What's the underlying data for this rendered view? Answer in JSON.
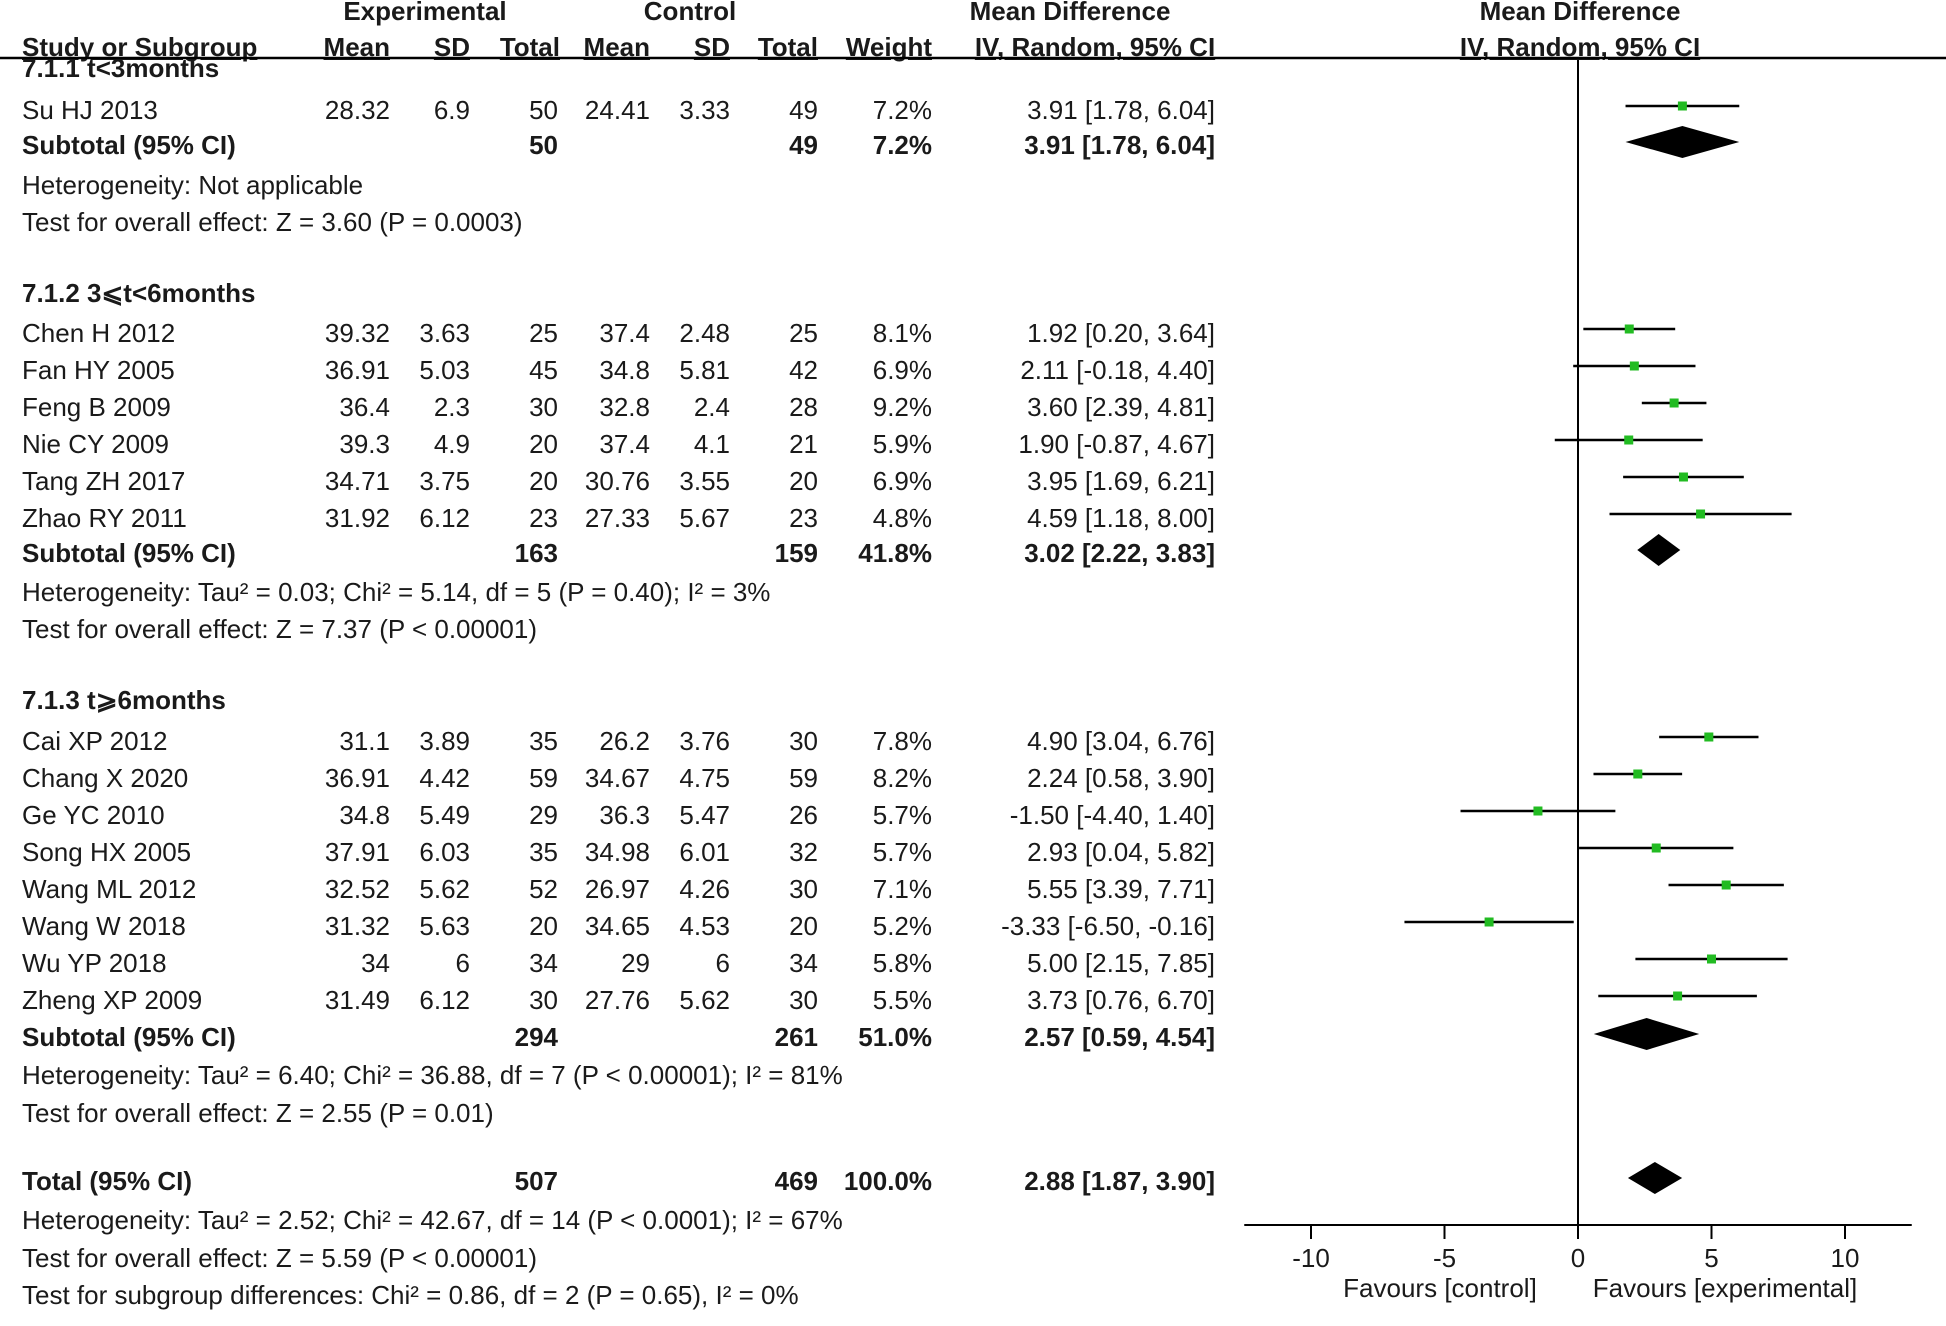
{
  "header": {
    "group_experimental": "Experimental",
    "group_control": "Control",
    "md_title": "Mean Difference",
    "plot_title": "Mean Difference",
    "col_study": "Study or Subgroup",
    "col_mean_e": "Mean",
    "col_sd_e": "SD",
    "col_total_e": "Total",
    "col_mean_c": "Mean",
    "col_sd_c": "SD",
    "col_total_c": "Total",
    "col_weight": "Weight",
    "col_method": "IV, Random, 95% CI",
    "plot_method": "IV, Random, 95% CI"
  },
  "rows": [
    {
      "kind": "sub",
      "label": "7.1.1 t<3months"
    },
    {
      "kind": "study",
      "study": "Su HJ 2013",
      "mean_e": "28.32",
      "sd_e": "6.9",
      "total_e": "50",
      "mean_c": "24.41",
      "sd_c": "3.33",
      "total_c": "49",
      "weight": "7.2%",
      "ci": "3.91 [1.78, 6.04]"
    },
    {
      "kind": "subtotal",
      "label": "Subtotal (95% CI)",
      "total_e": "50",
      "total_c": "49",
      "weight": "7.2%",
      "ci": "3.91 [1.78, 6.04]"
    },
    {
      "kind": "text",
      "text": "Heterogeneity: Not applicable"
    },
    {
      "kind": "text",
      "text": "Test for overall effect: Z = 3.60 (P = 0.0003)"
    },
    {
      "kind": "blank"
    },
    {
      "kind": "sub",
      "label": "7.1.2 3⩽t<6months"
    },
    {
      "kind": "study",
      "study": "Chen H 2012",
      "mean_e": "39.32",
      "sd_e": "3.63",
      "total_e": "25",
      "mean_c": "37.4",
      "sd_c": "2.48",
      "total_c": "25",
      "weight": "8.1%",
      "ci": "1.92 [0.20, 3.64]"
    },
    {
      "kind": "study",
      "study": "Fan HY 2005",
      "mean_e": "36.91",
      "sd_e": "5.03",
      "total_e": "45",
      "mean_c": "34.8",
      "sd_c": "5.81",
      "total_c": "42",
      "weight": "6.9%",
      "ci": "2.11 [-0.18, 4.40]"
    },
    {
      "kind": "study",
      "study": "Feng B 2009",
      "mean_e": "36.4",
      "sd_e": "2.3",
      "total_e": "30",
      "mean_c": "32.8",
      "sd_c": "2.4",
      "total_c": "28",
      "weight": "9.2%",
      "ci": "3.60 [2.39, 4.81]"
    },
    {
      "kind": "study",
      "study": "Nie CY 2009",
      "mean_e": "39.3",
      "sd_e": "4.9",
      "total_e": "20",
      "mean_c": "37.4",
      "sd_c": "4.1",
      "total_c": "21",
      "weight": "5.9%",
      "ci": "1.90 [-0.87, 4.67]"
    },
    {
      "kind": "study",
      "study": "Tang ZH 2017",
      "mean_e": "34.71",
      "sd_e": "3.75",
      "total_e": "20",
      "mean_c": "30.76",
      "sd_c": "3.55",
      "total_c": "20",
      "weight": "6.9%",
      "ci": "3.95 [1.69, 6.21]"
    },
    {
      "kind": "study",
      "study": "Zhao RY 2011",
      "mean_e": "31.92",
      "sd_e": "6.12",
      "total_e": "23",
      "mean_c": "27.33",
      "sd_c": "5.67",
      "total_c": "23",
      "weight": "4.8%",
      "ci": "4.59 [1.18, 8.00]"
    },
    {
      "kind": "subtotal",
      "label": "Subtotal (95% CI)",
      "total_e": "163",
      "total_c": "159",
      "weight": "41.8%",
      "ci": "3.02 [2.22, 3.83]"
    },
    {
      "kind": "text",
      "text": "Heterogeneity: Tau² = 0.03; Chi² = 5.14, df = 5 (P = 0.40); I² = 3%"
    },
    {
      "kind": "text",
      "text": "Test for overall effect: Z = 7.37 (P < 0.00001)"
    },
    {
      "kind": "blank"
    },
    {
      "kind": "sub",
      "label": "7.1.3 t⩾6months"
    },
    {
      "kind": "study",
      "study": "Cai XP 2012",
      "mean_e": "31.1",
      "sd_e": "3.89",
      "total_e": "35",
      "mean_c": "26.2",
      "sd_c": "3.76",
      "total_c": "30",
      "weight": "7.8%",
      "ci": "4.90 [3.04, 6.76]"
    },
    {
      "kind": "study",
      "study": "Chang X 2020",
      "mean_e": "36.91",
      "sd_e": "4.42",
      "total_e": "59",
      "mean_c": "34.67",
      "sd_c": "4.75",
      "total_c": "59",
      "weight": "8.2%",
      "ci": "2.24 [0.58, 3.90]"
    },
    {
      "kind": "study",
      "study": "Ge YC 2010",
      "mean_e": "34.8",
      "sd_e": "5.49",
      "total_e": "29",
      "mean_c": "36.3",
      "sd_c": "5.47",
      "total_c": "26",
      "weight": "5.7%",
      "ci": "-1.50 [-4.40, 1.40]"
    },
    {
      "kind": "study",
      "study": "Song HX 2005",
      "mean_e": "37.91",
      "sd_e": "6.03",
      "total_e": "35",
      "mean_c": "34.98",
      "sd_c": "6.01",
      "total_c": "32",
      "weight": "5.7%",
      "ci": "2.93 [0.04, 5.82]"
    },
    {
      "kind": "study",
      "study": "Wang ML 2012",
      "mean_e": "32.52",
      "sd_e": "5.62",
      "total_e": "52",
      "mean_c": "26.97",
      "sd_c": "4.26",
      "total_c": "30",
      "weight": "7.1%",
      "ci": "5.55 [3.39, 7.71]"
    },
    {
      "kind": "study",
      "study": "Wang W 2018",
      "mean_e": "31.32",
      "sd_e": "5.63",
      "total_e": "20",
      "mean_c": "34.65",
      "sd_c": "4.53",
      "total_c": "20",
      "weight": "5.2%",
      "ci": "-3.33 [-6.50, -0.16]"
    },
    {
      "kind": "study",
      "study": "Wu YP 2018",
      "mean_e": "34",
      "sd_e": "6",
      "total_e": "34",
      "mean_c": "29",
      "sd_c": "6",
      "total_c": "34",
      "weight": "5.8%",
      "ci": "5.00 [2.15, 7.85]"
    },
    {
      "kind": "study",
      "study": "Zheng XP  2009",
      "mean_e": "31.49",
      "sd_e": "6.12",
      "total_e": "30",
      "mean_c": "27.76",
      "sd_c": "5.62",
      "total_c": "30",
      "weight": "5.5%",
      "ci": "3.73 [0.76, 6.70]"
    },
    {
      "kind": "subtotal",
      "label": "Subtotal (95% CI)",
      "total_e": "294",
      "total_c": "261",
      "weight": "51.0%",
      "ci": "2.57 [0.59, 4.54]"
    },
    {
      "kind": "text",
      "text": "Heterogeneity: Tau² = 6.40; Chi² = 36.88, df = 7 (P < 0.00001); I² = 81%"
    },
    {
      "kind": "text",
      "text": "Test for overall effect: Z = 2.55 (P = 0.01)"
    },
    {
      "kind": "blank"
    },
    {
      "kind": "total",
      "label": "Total (95% CI)",
      "total_e": "507",
      "total_c": "469",
      "weight": "100.0%",
      "ci": "2.88 [1.87, 3.90]"
    },
    {
      "kind": "text",
      "text": "Heterogeneity: Tau² = 2.52; Chi² = 42.67, df = 14 (P < 0.0001); I² = 67%"
    },
    {
      "kind": "text",
      "text": "Test for overall effect: Z = 5.59 (P < 0.00001)"
    },
    {
      "kind": "text",
      "text": "Test for subgroup differences: Chi² = 0.86, df = 2 (P = 0.65), I² = 0%"
    }
  ],
  "chart_data": {
    "type": "forest",
    "title": "Mean Difference",
    "method": "IV, Random, 95% CI",
    "xlim": [
      -12.5,
      12.5
    ],
    "ticks": [
      -10,
      -5,
      0,
      5,
      10
    ],
    "tick_labels": [
      "-10",
      "-5",
      "0",
      "5",
      "10"
    ],
    "favours_left": "Favours [control]",
    "favours_right": "Favours [experimental]",
    "marker_color": "#22bb22",
    "line_color": "#000000",
    "studies": [
      {
        "study": "Su HJ 2013",
        "md": 3.91,
        "lo": 1.78,
        "hi": 6.04
      },
      {
        "study": "Chen H 2012",
        "md": 1.92,
        "lo": 0.2,
        "hi": 3.64
      },
      {
        "study": "Fan HY 2005",
        "md": 2.11,
        "lo": -0.18,
        "hi": 4.4
      },
      {
        "study": "Feng B 2009",
        "md": 3.6,
        "lo": 2.39,
        "hi": 4.81
      },
      {
        "study": "Nie CY 2009",
        "md": 1.9,
        "lo": -0.87,
        "hi": 4.67
      },
      {
        "study": "Tang ZH 2017",
        "md": 3.95,
        "lo": 1.69,
        "hi": 6.21
      },
      {
        "study": "Zhao RY 2011",
        "md": 4.59,
        "lo": 1.18,
        "hi": 8.0
      },
      {
        "study": "Cai XP 2012",
        "md": 4.9,
        "lo": 3.04,
        "hi": 6.76
      },
      {
        "study": "Chang X 2020",
        "md": 2.24,
        "lo": 0.58,
        "hi": 3.9
      },
      {
        "study": "Ge YC 2010",
        "md": -1.5,
        "lo": -4.4,
        "hi": 1.4
      },
      {
        "study": "Song HX 2005",
        "md": 2.93,
        "lo": 0.04,
        "hi": 5.82
      },
      {
        "study": "Wang ML 2012",
        "md": 5.55,
        "lo": 3.39,
        "hi": 7.71
      },
      {
        "study": "Wang W 2018",
        "md": -3.33,
        "lo": -6.5,
        "hi": -0.16
      },
      {
        "study": "Wu YP 2018",
        "md": 5.0,
        "lo": 2.15,
        "hi": 7.85
      },
      {
        "study": "Zheng XP  2009",
        "md": 3.73,
        "lo": 0.76,
        "hi": 6.7
      }
    ],
    "subtotals": [
      {
        "label": "7.1.1 Subtotal",
        "md": 3.91,
        "lo": 1.78,
        "hi": 6.04
      },
      {
        "label": "7.1.2 Subtotal",
        "md": 3.02,
        "lo": 2.22,
        "hi": 3.83
      },
      {
        "label": "7.1.3 Subtotal",
        "md": 2.57,
        "lo": 0.59,
        "hi": 4.54
      }
    ],
    "total": {
      "label": "Total (95% CI)",
      "md": 2.88,
      "lo": 1.87,
      "hi": 3.9
    }
  }
}
